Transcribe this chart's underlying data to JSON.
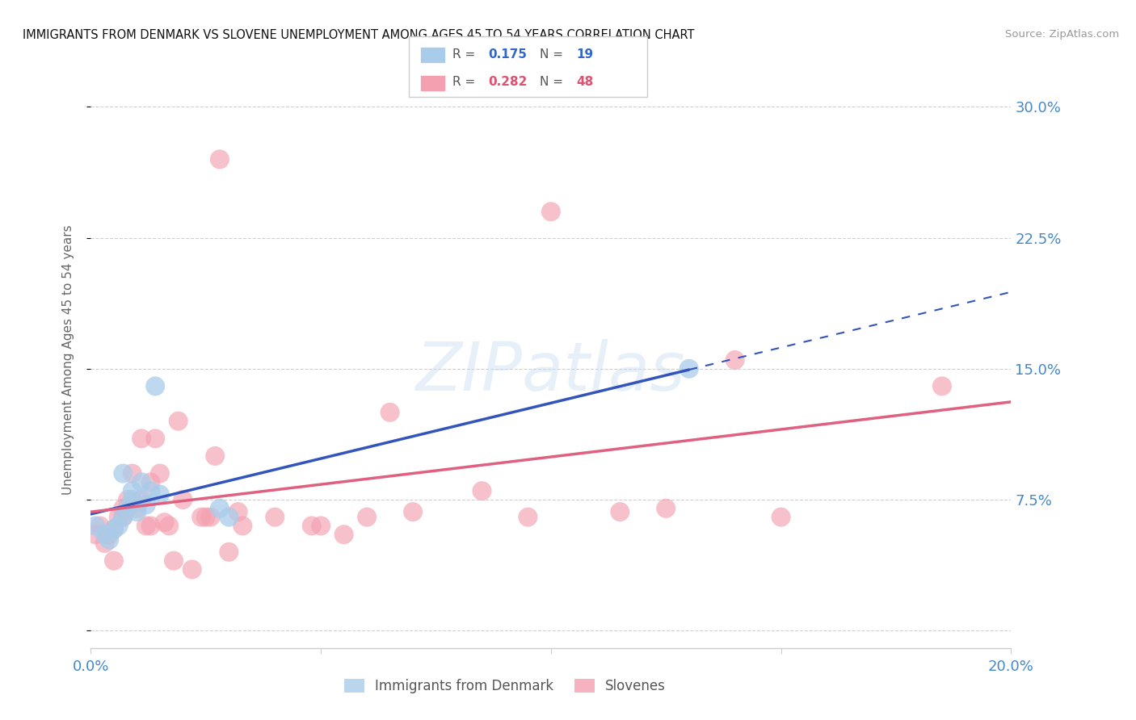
{
  "title": "IMMIGRANTS FROM DENMARK VS SLOVENE UNEMPLOYMENT AMONG AGES 45 TO 54 YEARS CORRELATION CHART",
  "source": "Source: ZipAtlas.com",
  "ylabel": "Unemployment Among Ages 45 to 54 years",
  "xlim": [
    0.0,
    0.2
  ],
  "ylim": [
    -0.01,
    0.32
  ],
  "yticks": [
    0.0,
    0.075,
    0.15,
    0.225,
    0.3
  ],
  "ytick_labels": [
    "",
    "7.5%",
    "15.0%",
    "22.5%",
    "30.0%"
  ],
  "xticks": [
    0.0,
    0.05,
    0.1,
    0.15,
    0.2
  ],
  "xtick_labels": [
    "0.0%",
    "",
    "",
    "",
    "20.0%"
  ],
  "background_color": "#ffffff",
  "grid_color": "#d0d0d0",
  "watermark": "ZIPatlas",
  "denmark_color": "#a8ccea",
  "slovene_color": "#f4a0b0",
  "denmark_line_color": "#3355bb",
  "slovene_line_color": "#e06080",
  "tick_label_color": "#4488cc",
  "denmark_scatter_x": [
    0.001,
    0.003,
    0.004,
    0.005,
    0.006,
    0.007,
    0.007,
    0.008,
    0.009,
    0.009,
    0.01,
    0.011,
    0.012,
    0.013,
    0.014,
    0.015,
    0.028,
    0.03,
    0.13
  ],
  "denmark_scatter_y": [
    0.06,
    0.055,
    0.052,
    0.058,
    0.06,
    0.065,
    0.09,
    0.07,
    0.075,
    0.08,
    0.068,
    0.085,
    0.072,
    0.08,
    0.14,
    0.078,
    0.07,
    0.065,
    0.15
  ],
  "slovene_scatter_x": [
    0.001,
    0.002,
    0.003,
    0.004,
    0.005,
    0.005,
    0.006,
    0.007,
    0.007,
    0.008,
    0.009,
    0.01,
    0.011,
    0.011,
    0.012,
    0.013,
    0.013,
    0.014,
    0.015,
    0.016,
    0.017,
    0.018,
    0.019,
    0.02,
    0.022,
    0.024,
    0.025,
    0.026,
    0.027,
    0.028,
    0.03,
    0.032,
    0.033,
    0.04,
    0.048,
    0.05,
    0.055,
    0.06,
    0.065,
    0.07,
    0.085,
    0.095,
    0.1,
    0.115,
    0.125,
    0.14,
    0.15,
    0.185
  ],
  "slovene_scatter_y": [
    0.055,
    0.06,
    0.05,
    0.055,
    0.058,
    0.04,
    0.065,
    0.07,
    0.065,
    0.075,
    0.09,
    0.07,
    0.075,
    0.11,
    0.06,
    0.06,
    0.085,
    0.11,
    0.09,
    0.062,
    0.06,
    0.04,
    0.12,
    0.075,
    0.035,
    0.065,
    0.065,
    0.065,
    0.1,
    0.27,
    0.045,
    0.068,
    0.06,
    0.065,
    0.06,
    0.06,
    0.055,
    0.065,
    0.125,
    0.068,
    0.08,
    0.065,
    0.24,
    0.068,
    0.07,
    0.155,
    0.065,
    0.14
  ],
  "dk_line_x_solid_end": 0.033,
  "dk_line_x_start": 0.0,
  "dk_line_x_end": 0.2,
  "sl_line_x_start": 0.0,
  "sl_line_x_end": 0.2
}
